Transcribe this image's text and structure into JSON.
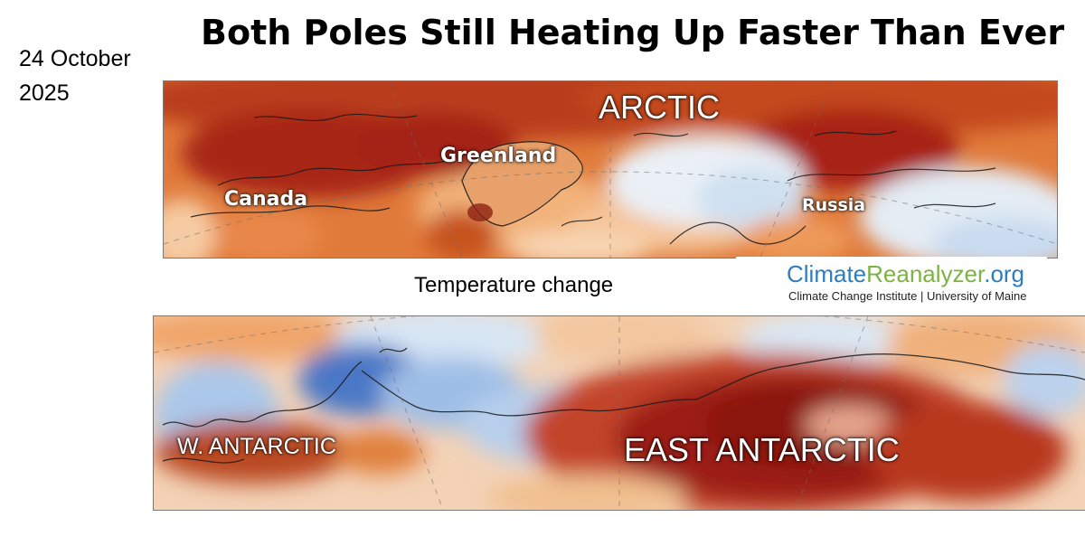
{
  "title": "Both Poles Still Heating Up Faster Than Ever",
  "date": "24 October\n2025",
  "caption": "Temperature change",
  "arctic_map": {
    "region_labels": [
      "ARCTIC",
      "Greenland",
      "Canada",
      "Russia"
    ]
  },
  "antarctic_map": {
    "region_labels": [
      "W. ANTARCTIC",
      "EAST ANTARCTIC"
    ]
  },
  "logo": {
    "name_part1": "Climate",
    "name_part2": "Reanalyzer",
    "name_part3": ".org",
    "subtitle": "Climate Change Institute | University of Maine",
    "colors": {
      "part1": "#2e7dbe",
      "part2": "#7cb342",
      "part3": "#2e7dbe"
    }
  },
  "colors": {
    "strong_warm": "#9c1c12",
    "warm": "#d9622b",
    "mild_warm": "#f0a66a",
    "neutral": "#fbe2c8",
    "cool": "#c6dcf2",
    "cold": "#3e6fc4"
  }
}
